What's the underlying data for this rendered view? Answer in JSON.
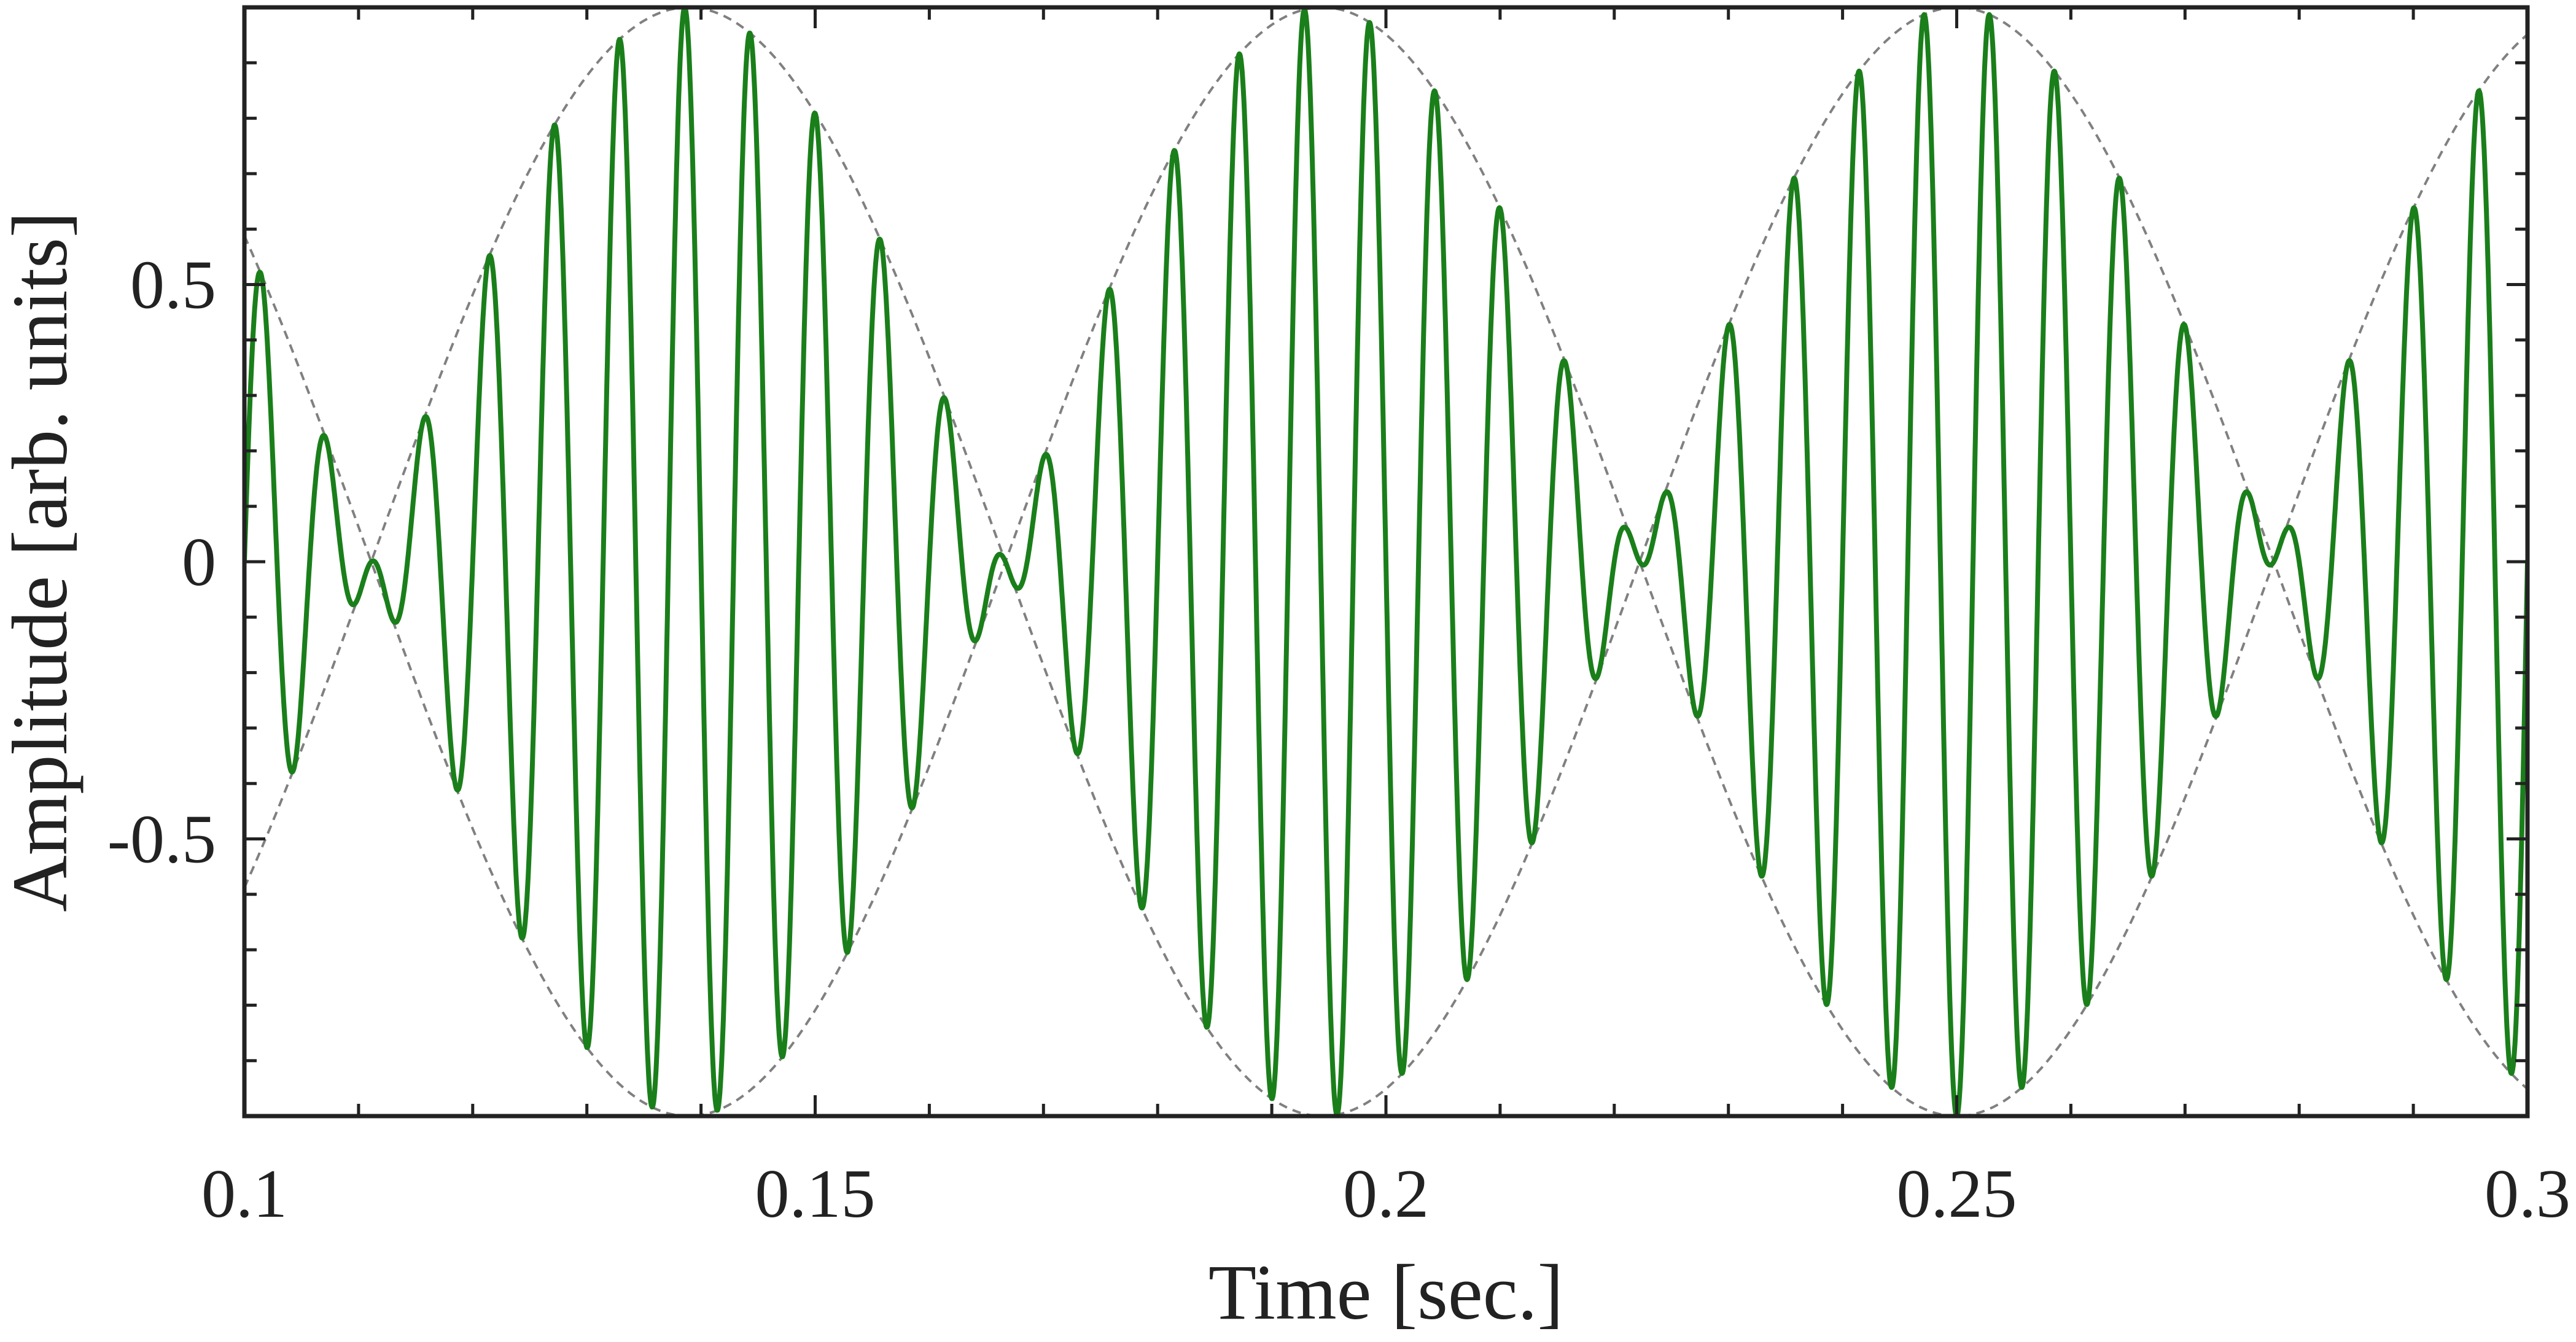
{
  "chart_data": {
    "type": "line",
    "title": "",
    "xlabel": "Time [sec.]",
    "ylabel": "Amplitude [arb. units]",
    "xlim": [
      0.1,
      0.3
    ],
    "ylim": [
      -1,
      1
    ],
    "x_ticks": [
      0.1,
      0.15,
      0.2,
      0.25,
      0.3
    ],
    "x_tick_labels": [
      "0.1",
      "0.15",
      "0.2",
      "0.25",
      "0.3"
    ],
    "y_ticks": [
      -0.5,
      0,
      0.5
    ],
    "y_tick_labels": [
      "-0.5",
      "0",
      "0.5"
    ],
    "grid": false,
    "legend": "none",
    "colors": {
      "signal": "#1a7f1a",
      "envelope": "#808080",
      "axes": "#222222"
    },
    "series": [
      {
        "role": "signal",
        "style": "solid",
        "formula": "sin(2*pi*9*t) * sin(2*pi*175*t)",
        "envelope_frequency_hz": 9,
        "carrier_frequency_hz": 175,
        "sample_step": 5e-05
      },
      {
        "role": "envelope",
        "style": "dashed",
        "formula": "sin(2*pi*9*t)",
        "frequency_hz": 9
      },
      {
        "role": "envelope",
        "style": "dashed",
        "formula": "-sin(2*pi*9*t)",
        "frequency_hz": 9
      }
    ]
  }
}
